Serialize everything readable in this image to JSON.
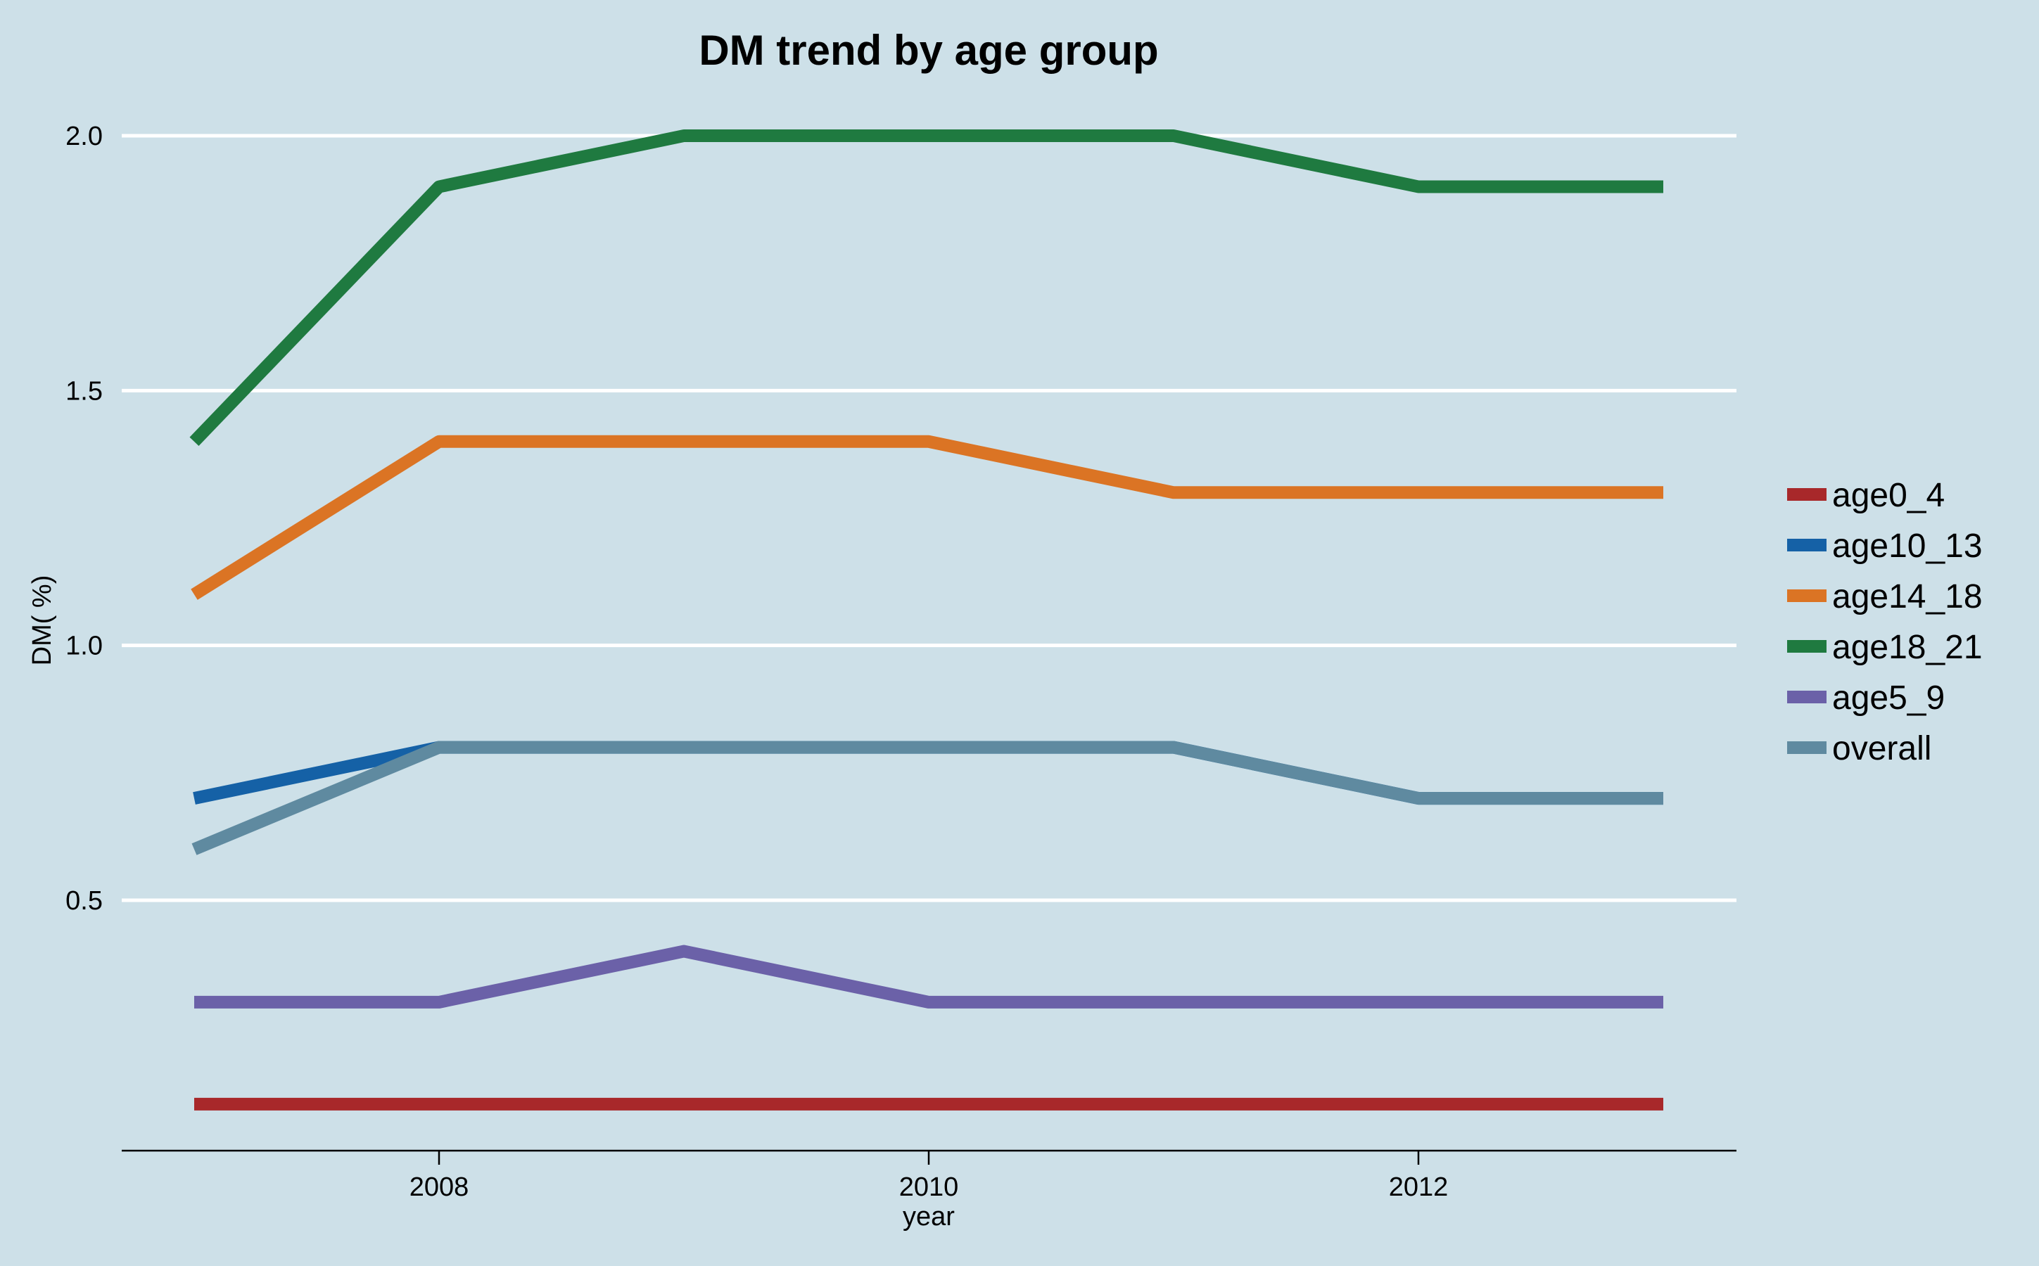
{
  "chart_data": {
    "type": "line",
    "title": "DM trend by age group",
    "xlabel": "year",
    "ylabel": "DM( %)",
    "x": [
      2007,
      2008,
      2009,
      2010,
      2011,
      2012,
      2013
    ],
    "x_ticks": [
      2008,
      2010,
      2012
    ],
    "y_ticks": [
      0.5,
      1.0,
      1.5,
      2.0
    ],
    "y_tick_labels": [
      "0.5",
      "1.0",
      "1.5",
      "2.0"
    ],
    "xlim": [
      2005.7,
      2012.3
    ],
    "ylim": [
      0.0,
      2.0
    ],
    "grid": "horizontal",
    "legend_position": "right",
    "series": [
      {
        "name": "age0_4",
        "color": "#a8282a",
        "values": [
          0.1,
          0.1,
          0.1,
          0.1,
          0.1,
          0.1,
          0.1
        ]
      },
      {
        "name": "age10_13",
        "color": "#1561a6",
        "values": [
          0.7,
          0.8,
          0.8,
          0.8,
          0.8,
          0.7,
          0.7
        ]
      },
      {
        "name": "age14_18",
        "color": "#db7424",
        "values": [
          1.1,
          1.4,
          1.4,
          1.4,
          1.3,
          1.3,
          1.3
        ]
      },
      {
        "name": "age18_21",
        "color": "#1f7a40",
        "values": [
          1.4,
          1.9,
          2.0,
          2.0,
          2.0,
          1.9,
          1.9
        ]
      },
      {
        "name": "age5_9",
        "color": "#6b61a8",
        "values": [
          0.3,
          0.3,
          0.4,
          0.3,
          0.3,
          0.3,
          0.3
        ]
      },
      {
        "name": "overall",
        "color": "#5f8aa0",
        "values": [
          0.6,
          0.8,
          0.8,
          0.8,
          0.8,
          0.7,
          0.7
        ]
      }
    ]
  }
}
